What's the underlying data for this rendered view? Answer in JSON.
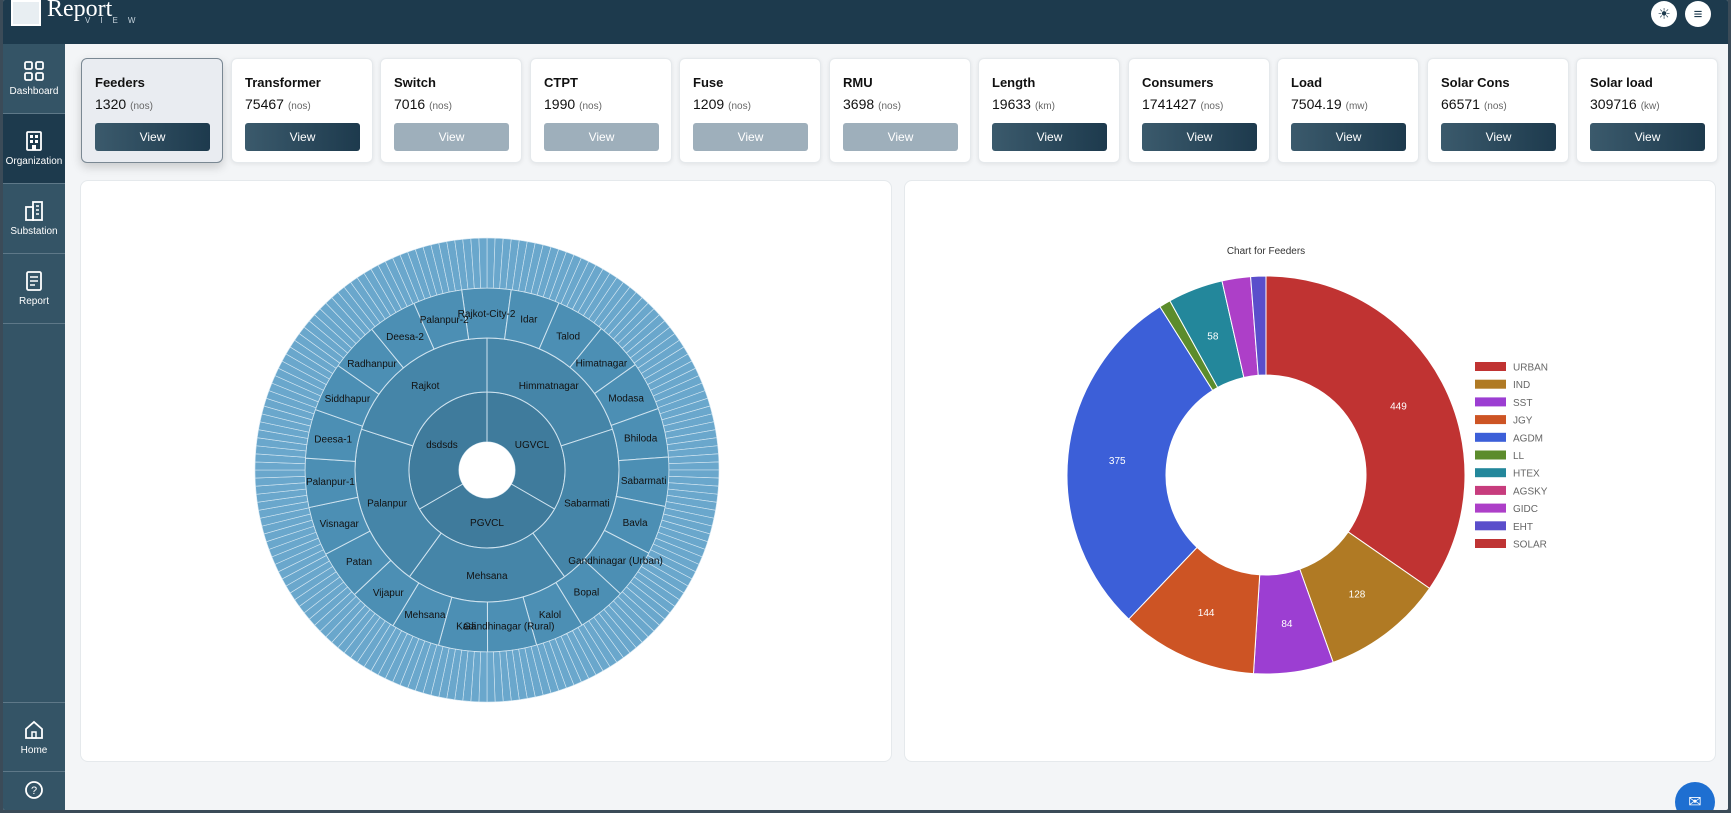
{
  "app": {
    "logo_text": "Report",
    "logo_sub": "VIEW"
  },
  "topbar": {
    "theme_icon": "sun-icon",
    "menu_icon": "menu-icon"
  },
  "sidebar": {
    "items": [
      {
        "label": "Dashboard",
        "icon": "dashboard-icon"
      },
      {
        "label": "Organization",
        "icon": "organization-icon"
      },
      {
        "label": "Substation",
        "icon": "substation-icon"
      },
      {
        "label": "Report",
        "icon": "report-icon"
      }
    ],
    "bottom": [
      {
        "label": "Home",
        "icon": "home-icon"
      },
      {
        "label": "",
        "icon": "help-icon"
      }
    ]
  },
  "cards": [
    {
      "title": "Feeders",
      "value": "1320",
      "unit": "(nos)",
      "button": "View",
      "state": "selected"
    },
    {
      "title": "Transformer",
      "value": "75467",
      "unit": "(nos)",
      "button": "View",
      "state": "active"
    },
    {
      "title": "Switch",
      "value": "7016",
      "unit": "(nos)",
      "button": "View",
      "state": "disabled"
    },
    {
      "title": "CTPT",
      "value": "1990",
      "unit": "(nos)",
      "button": "View",
      "state": "disabled"
    },
    {
      "title": "Fuse",
      "value": "1209",
      "unit": "(nos)",
      "button": "View",
      "state": "disabled"
    },
    {
      "title": "RMU",
      "value": "3698",
      "unit": "(nos)",
      "button": "View",
      "state": "disabled"
    },
    {
      "title": "Length",
      "value": "19633",
      "unit": "(km)",
      "button": "View",
      "state": "active"
    },
    {
      "title": "Consumers",
      "value": "1741427",
      "unit": "(nos)",
      "button": "View",
      "state": "active"
    },
    {
      "title": "Load",
      "value": "7504.19",
      "unit": "(mw)",
      "button": "View",
      "state": "active"
    },
    {
      "title": "Solar Cons",
      "value": "66571",
      "unit": "(nos)",
      "button": "View",
      "state": "active"
    },
    {
      "title": "Solar load",
      "value": "309716",
      "unit": "(kw)",
      "button": "View",
      "state": "active"
    }
  ],
  "sunburst": {
    "inner": [
      "dsdsds",
      "UGVCL",
      "PGVCL"
    ],
    "middle": [
      "Rajkot",
      "Himmatnagar",
      "Sabarmati",
      "Mehsana",
      "Palanpur"
    ],
    "outer": [
      "Rajkot-City-2",
      "Idar",
      "Talod",
      "Himatnagar",
      "Modasa",
      "Bhiloda",
      "Sabarmati",
      "Bavla",
      "Gandhinagar (Urban)",
      "Bopal",
      "Kalol",
      "Gandhinagar (Rural)",
      "Kadi",
      "Mehsana",
      "Vijapur",
      "Patan",
      "Visnagar",
      "Palanpur-1",
      "Deesa-1",
      "Siddhapur",
      "Radhanpur",
      "Deesa-2",
      "Palanpur-2"
    ],
    "colors": {
      "inner": "#3f7b9c",
      "middle": "#4585a8",
      "outer": "#4c8fb4",
      "ring": "#6aa7cc"
    }
  },
  "chart_data": {
    "type": "pie",
    "title": "Chart for Feeders",
    "categories": [
      "URBAN",
      "IND",
      "SST",
      "JGY",
      "AGDM",
      "LL",
      "HTEX",
      "AGSKY",
      "GIDC",
      "EHT",
      "SOLAR"
    ],
    "values": [
      449,
      128,
      84,
      144,
      375,
      12,
      58,
      0,
      30,
      16,
      0
    ],
    "colors": [
      "#c03332",
      "#b07a24",
      "#9c3ed2",
      "#cd5424",
      "#3c5fd8",
      "#5c8c2c",
      "#23879b",
      "#c73c7d",
      "#ad3fc8",
      "#5a4ecb",
      "#bf3434"
    ],
    "data_labels": [
      "449",
      "128",
      "84",
      "144",
      "375",
      "",
      "58",
      "",
      "",
      "",
      ""
    ],
    "legend_position": "right",
    "donut": true
  }
}
